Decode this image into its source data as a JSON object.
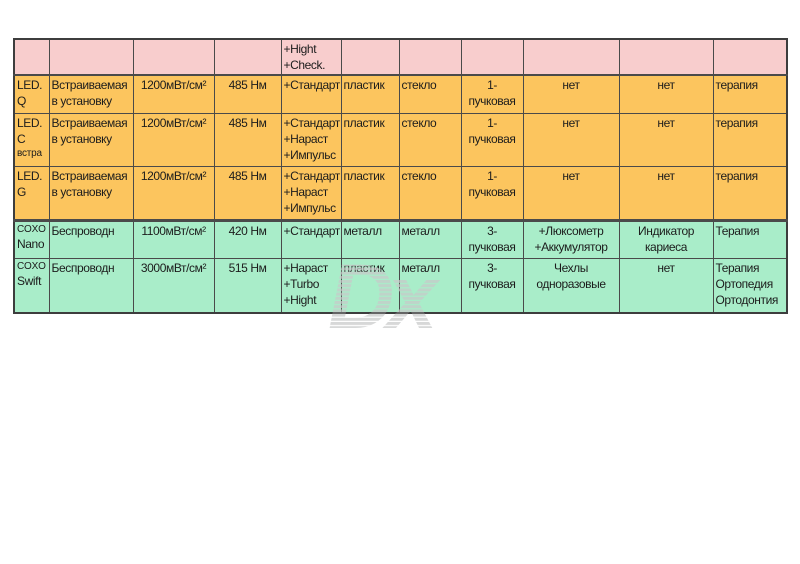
{
  "watermark": {
    "text": "Dx"
  },
  "colors": {
    "row_pink": "#f8cdcd",
    "row_orange": "#fcc55e",
    "row_green": "#a9edc9",
    "border": "#4a4a4a",
    "text": "#1c1c1c",
    "watermark_gray": "#c8cac9"
  },
  "table": {
    "rows": [
      {
        "group": "pink",
        "cells": [
          "",
          "",
          "",
          "",
          "+Hight\n+Check.",
          "",
          "",
          "",
          "",
          "",
          ""
        ]
      },
      {
        "group": "orange",
        "cells": [
          "LED.\nQ",
          "Встраиваемая\nв установку",
          "1200мВт/см²",
          "485 Нм",
          "+Стандарт",
          "пластик",
          "стекло",
          "1-\nпучковая",
          "нет",
          "нет",
          "терапия"
        ]
      },
      {
        "group": "orange",
        "cells": [
          {
            "lines": [
              {
                "text": "LED."
              },
              {
                "text": "C"
              },
              {
                "text": "встра",
                "small": true
              }
            ]
          },
          "Встраиваемая\nв установку",
          "1200мВт/см²",
          "485 Нм",
          "+Стандарт\n+Нараст\n+Импульс",
          "пластик",
          "стекло",
          "1-\nпучковая",
          "нет",
          "нет",
          "терапия"
        ]
      },
      {
        "group": "orange",
        "cells": [
          "LED.\nG",
          "Встраиваемая\nв установку",
          "1200мВт/см²",
          "485 Нм",
          "+Стандарт\n+Нараст\n+Импульс",
          "пластик",
          "стекло",
          "1-\nпучковая",
          "нет",
          "нет",
          "терапия"
        ]
      },
      {
        "group": "green",
        "cells": [
          {
            "lines": [
              {
                "text": "COXO",
                "small": true
              },
              {
                "text": "Nano"
              }
            ]
          },
          "Беспроводн",
          "1100мВт/см²",
          "420 Нм",
          "+Стандарт",
          "металл",
          "металл",
          "3-\nпучковая",
          "+Люксометр\n+Аккумулятор",
          "Индикатор\nкариеса",
          "Терапия"
        ]
      },
      {
        "group": "green",
        "cells": [
          {
            "lines": [
              {
                "text": "COXO",
                "small": true
              },
              {
                "text": "Swift"
              }
            ]
          },
          "Беспроводн",
          "3000мВт/см²",
          "515 Нм",
          "+Нараст\n+Turbo\n+Hight",
          "пластик",
          "металл",
          "3-\nпучковая",
          "Чехлы\nодноразовые",
          "нет",
          "Терапия\nОртопедия\nОртодонтия"
        ]
      }
    ]
  }
}
